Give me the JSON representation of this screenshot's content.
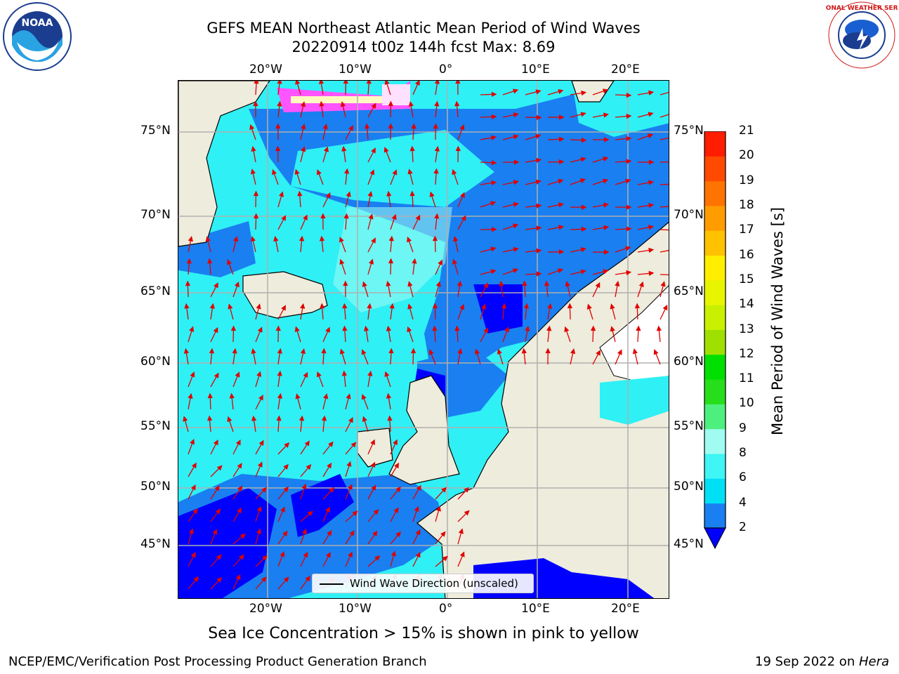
{
  "header": {
    "title_line1": "GEFS MEAN Northeast Atlantic Mean Period of Wind Waves",
    "title_line2": "20220914 t00z 144h fcst   Max: 8.69"
  },
  "logos": {
    "noara_text": "NOAA",
    "nws_text": "NATIONAL WEATHER SERVICE"
  },
  "map": {
    "lon_labels": [
      "20°W",
      "10°W",
      "0°",
      "10°E",
      "20°E"
    ],
    "lat_labels": [
      "75°N",
      "70°N",
      "65°N",
      "60°N",
      "55°N",
      "50°N",
      "45°N"
    ],
    "legend_label": "Wind Wave Direction (unscaled)"
  },
  "colorbar": {
    "title": "Mean Period of Wind Waves [s]",
    "ticks": [
      "2",
      "4",
      "6",
      "8",
      "9",
      "10",
      "11",
      "12",
      "13",
      "14",
      "15",
      "16",
      "17",
      "18",
      "19",
      "20",
      "21"
    ],
    "colors": [
      "#1a7ff0",
      "#00e0f5",
      "#3ff5f5",
      "#a0fcf0",
      "#4df07c",
      "#27de1b",
      "#00e000",
      "#9fe000",
      "#c8f000",
      "#e8f500",
      "#ffee00",
      "#ffc200",
      "#ff9c00",
      "#ff7300",
      "#ff4a00",
      "#ff1d00"
    ],
    "extend_color": "#0000ff"
  },
  "notes": {
    "subtitle": "Sea Ice Concentration > 15% is shown in pink to yellow",
    "footer_left": "NCEP/EMC/Verification Post Processing Product Generation Branch",
    "footer_date": "19 Sep 2022 on ",
    "footer_machine": "Hera"
  },
  "style": {
    "land_color": "#eeecdc",
    "grid_color": "#b0b0b0",
    "arrow_color": "#e00000"
  }
}
